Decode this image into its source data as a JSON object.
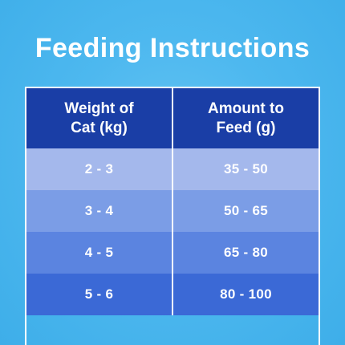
{
  "title": "Feeding Instructions",
  "table": {
    "headers": [
      "Weight of Cat (kg)",
      "Amount to Feed (g)"
    ],
    "rows": [
      {
        "weight": "2 - 3",
        "amount": "35 - 50",
        "color": "#a4b8ec"
      },
      {
        "weight": "3 - 4",
        "amount": "50 - 65",
        "color": "#7b9de6"
      },
      {
        "weight": "4 - 5",
        "amount": "65 - 80",
        "color": "#5b84e0"
      },
      {
        "weight": "5 - 6",
        "amount": "80 - 100",
        "color": "#3b69d6"
      }
    ]
  },
  "colors": {
    "background": "#4db8ef",
    "header": "#1a3ea6",
    "text": "#ffffff"
  }
}
